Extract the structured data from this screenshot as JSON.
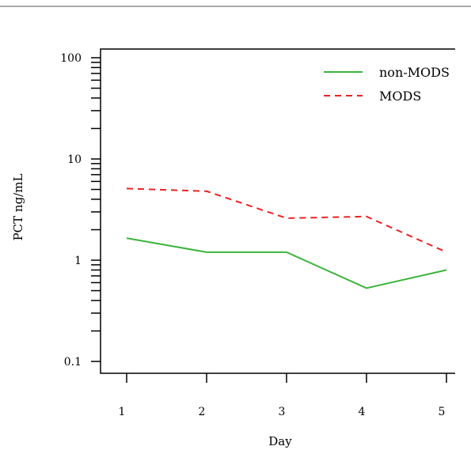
{
  "chart_data": {
    "type": "line",
    "title": "",
    "xlabel": "Day",
    "ylabel": "PCT ng/mL",
    "y_scale": "log",
    "x": [
      1,
      2,
      3,
      4,
      5
    ],
    "x_tick_labels": [
      "1",
      "2",
      "3",
      "4",
      "5"
    ],
    "y_tick_labels": [
      "0.1",
      "1",
      "10",
      "100"
    ],
    "ylim": [
      0.1,
      100
    ],
    "xlim": [
      0.7,
      5.05
    ],
    "grid": false,
    "legend_position": "top-right",
    "series": [
      {
        "name": "non-MODS",
        "values": [
          1.65,
          1.2,
          1.2,
          0.53,
          0.8
        ],
        "color": "#3cb43c",
        "line_style": "solid"
      },
      {
        "name": "MODS",
        "values": [
          5.1,
          4.8,
          2.6,
          2.7,
          1.2
        ],
        "color": "#ee2222",
        "line_style": "dashed"
      }
    ]
  }
}
